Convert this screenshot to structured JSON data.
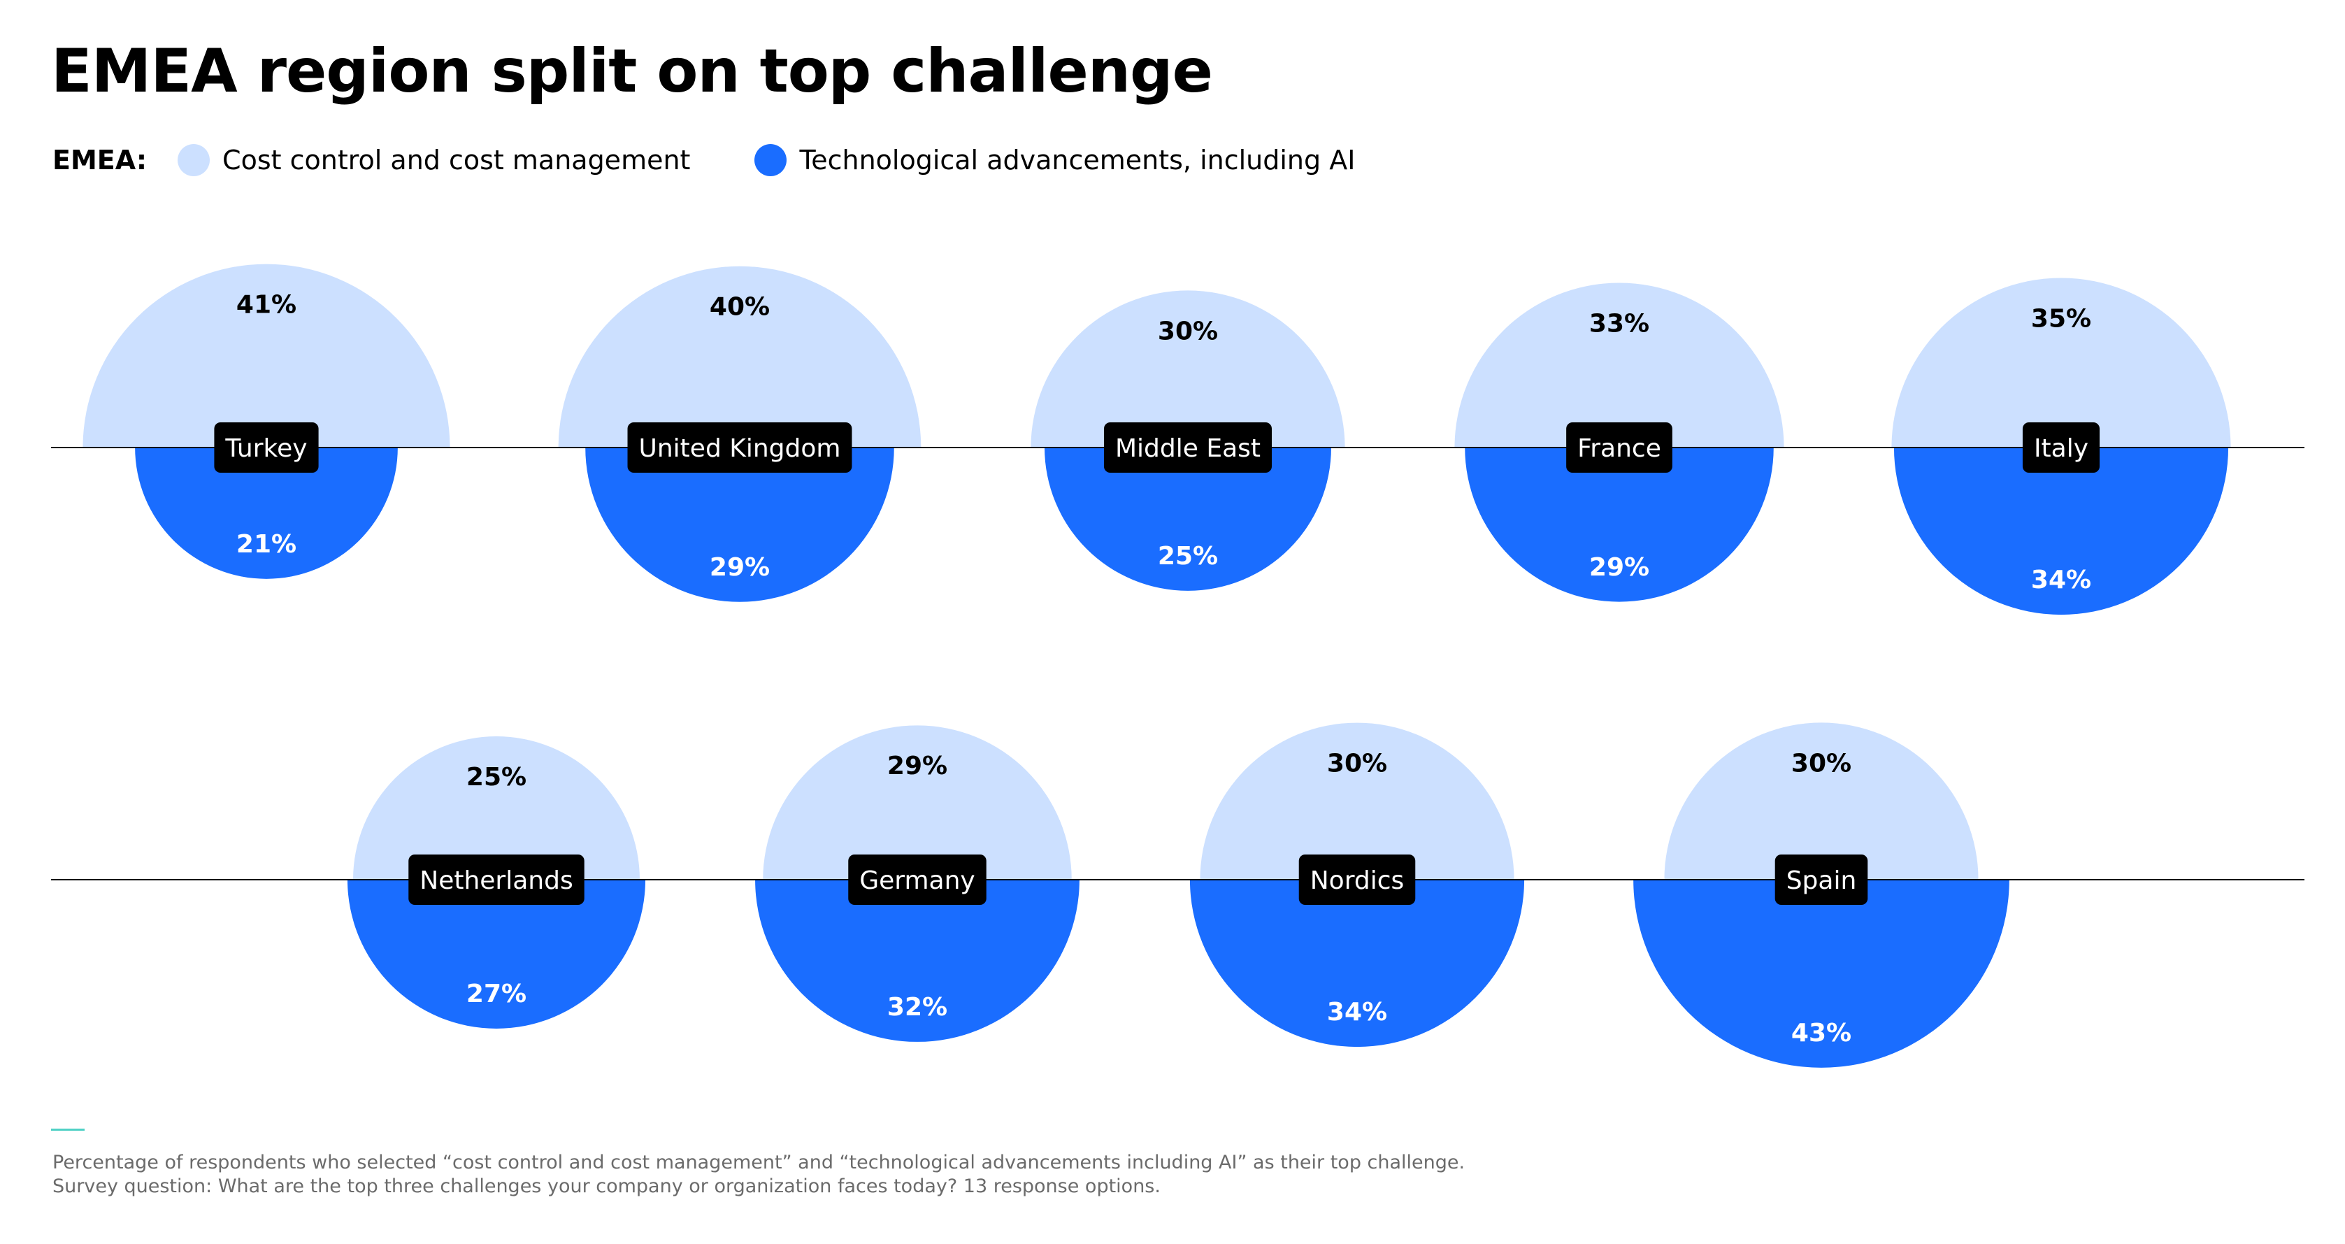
{
  "title": "EMEA region split on top challenge",
  "legend": {
    "prefix": "EMEA:",
    "items": [
      {
        "label": "Cost control and cost management",
        "color": "#cce0ff"
      },
      {
        "label": "Technological advancements, including AI",
        "color": "#1a6dff"
      }
    ]
  },
  "colors": {
    "label_bg": "#000000",
    "label_text": "#ffffff",
    "baseline": "#000000",
    "accent": "#4fd1c5"
  },
  "chart_data": {
    "type": "half-circle proportional area chart",
    "series": [
      {
        "name": "Cost control and cost management",
        "color": "#cce0ff"
      },
      {
        "name": "Technological advancements, including AI",
        "color": "#1a6dff"
      }
    ],
    "rows": [
      {
        "categories": [
          {
            "name": "Turkey",
            "cost_control": 41,
            "tech_ai": 21
          },
          {
            "name": "United Kingdom",
            "cost_control": 40,
            "tech_ai": 29
          },
          {
            "name": "Middle East",
            "cost_control": 30,
            "tech_ai": 25
          },
          {
            "name": "France",
            "cost_control": 33,
            "tech_ai": 29
          },
          {
            "name": "Italy",
            "cost_control": 35,
            "tech_ai": 34
          }
        ]
      },
      {
        "categories": [
          {
            "name": "Netherlands",
            "cost_control": 25,
            "tech_ai": 27
          },
          {
            "name": "Germany",
            "cost_control": 29,
            "tech_ai": 32
          },
          {
            "name": "Nordics",
            "cost_control": 30,
            "tech_ai": 34
          },
          {
            "name": "Spain",
            "cost_control": 30,
            "tech_ai": 43
          }
        ]
      }
    ],
    "value_suffix": "%"
  },
  "footnote": {
    "line1": "Percentage of respondents who selected “cost control and cost management” and “technological advancements including AI” as their top challenge.",
    "line2": "Survey question: What are the top three challenges your company or organization faces today? 13 response options."
  }
}
